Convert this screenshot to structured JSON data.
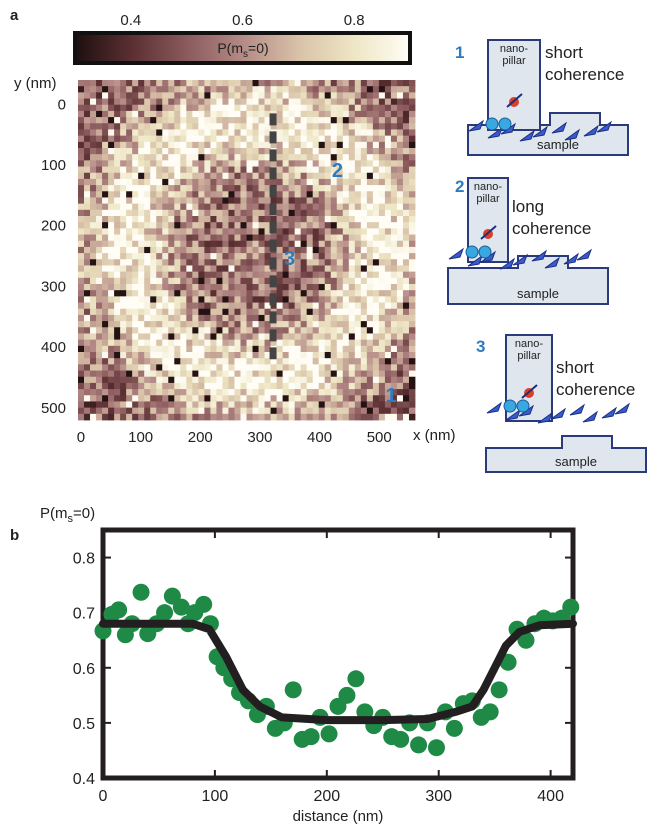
{
  "panel_labels": {
    "a": "a",
    "b": "b"
  },
  "colorbar": {
    "label_prefix": "P(m",
    "label_sub": "s",
    "label_suffix": "=0)",
    "ticks": [
      "0.4",
      "0.6",
      "0.8"
    ],
    "tick_values": [
      0.4,
      0.6,
      0.8
    ],
    "range": [
      0.3,
      0.9
    ],
    "colormap": [
      "#1e0f0f",
      "#5a2f32",
      "#8a5a5c",
      "#b48a86",
      "#d8c2a8",
      "#eee6c4",
      "#fffdf6"
    ]
  },
  "heatmap": {
    "ylabel": "y (nm)",
    "xlabel": "x (nm)",
    "xticks": [
      "0",
      "100",
      "200",
      "300",
      "400",
      "500"
    ],
    "xtick_values": [
      0,
      100,
      200,
      300,
      400,
      500
    ],
    "yticks": [
      "0",
      "100",
      "200",
      "300",
      "400",
      "500"
    ],
    "ytick_values": [
      0,
      100,
      200,
      300,
      400,
      500
    ],
    "xlim": [
      -5,
      560
    ],
    "ylim": [
      -40,
      520
    ],
    "markers": [
      {
        "label": "1",
        "x": 520,
        "y": 490
      },
      {
        "label": "2",
        "x": 430,
        "y": 120
      },
      {
        "label": "3",
        "x": 350,
        "y": 265
      }
    ],
    "dashed_line": {
      "x": 322,
      "y1": 15,
      "y2": 420
    },
    "marker_color": "#2e7bbd"
  },
  "schematics": [
    {
      "number": "1",
      "pillar_text": [
        "nano-",
        "pillar"
      ],
      "desc": [
        "short",
        "coherence"
      ],
      "sample": "sample"
    },
    {
      "number": "2",
      "pillar_text": [
        "nano-",
        "pillar"
      ],
      "desc": [
        "long",
        "coherence"
      ],
      "sample": "sample"
    },
    {
      "number": "3",
      "pillar_text": [
        "nano-",
        "pillar"
      ],
      "desc": [
        "short",
        "coherence"
      ],
      "sample": "sample"
    }
  ],
  "chart_data": {
    "type": "scatter",
    "ylabel_prefix": "P(m",
    "ylabel_sub": "s",
    "ylabel_suffix": "=0)",
    "xlabel": "distance (nm)",
    "xlim": [
      0,
      420
    ],
    "ylim": [
      0.4,
      0.85
    ],
    "xticks": [
      0,
      100,
      200,
      300,
      400
    ],
    "yticks": [
      0.4,
      0.5,
      0.6,
      0.7,
      0.8
    ],
    "ytick_labels": [
      "0.4",
      "0.5",
      "0.6",
      "0.7",
      "0.8"
    ],
    "point_color": "#1e8a46",
    "fit_color": "#231f20",
    "series": [
      {
        "kind": "points",
        "x": [
          0,
          8,
          14,
          20,
          26,
          34,
          40,
          48,
          55,
          62,
          70,
          76,
          82,
          90,
          96,
          102,
          108,
          115,
          122,
          130,
          138,
          146,
          154,
          162,
          170,
          178,
          186,
          194,
          202,
          210,
          218,
          226,
          234,
          242,
          250,
          258,
          266,
          274,
          282,
          290,
          298,
          306,
          314,
          322,
          330,
          338,
          346,
          354,
          362,
          370,
          378,
          386,
          394,
          402,
          410,
          418
        ],
        "y": [
          0.667,
          0.697,
          0.705,
          0.66,
          0.68,
          0.737,
          0.662,
          0.68,
          0.7,
          0.73,
          0.71,
          0.68,
          0.7,
          0.715,
          0.68,
          0.62,
          0.6,
          0.58,
          0.555,
          0.54,
          0.515,
          0.53,
          0.49,
          0.5,
          0.56,
          0.47,
          0.475,
          0.51,
          0.48,
          0.53,
          0.55,
          0.58,
          0.52,
          0.495,
          0.51,
          0.475,
          0.47,
          0.5,
          0.46,
          0.5,
          0.455,
          0.52,
          0.49,
          0.535,
          0.54,
          0.51,
          0.52,
          0.56,
          0.61,
          0.67,
          0.65,
          0.68,
          0.69,
          0.685,
          0.69,
          0.71
        ]
      },
      {
        "kind": "fit",
        "x": [
          0,
          80,
          95,
          110,
          125,
          140,
          160,
          200,
          250,
          290,
          315,
          330,
          340,
          350,
          360,
          372,
          390,
          420
        ],
        "y": [
          0.68,
          0.68,
          0.67,
          0.62,
          0.56,
          0.53,
          0.51,
          0.505,
          0.505,
          0.507,
          0.52,
          0.53,
          0.56,
          0.6,
          0.64,
          0.665,
          0.677,
          0.68
        ]
      }
    ]
  }
}
